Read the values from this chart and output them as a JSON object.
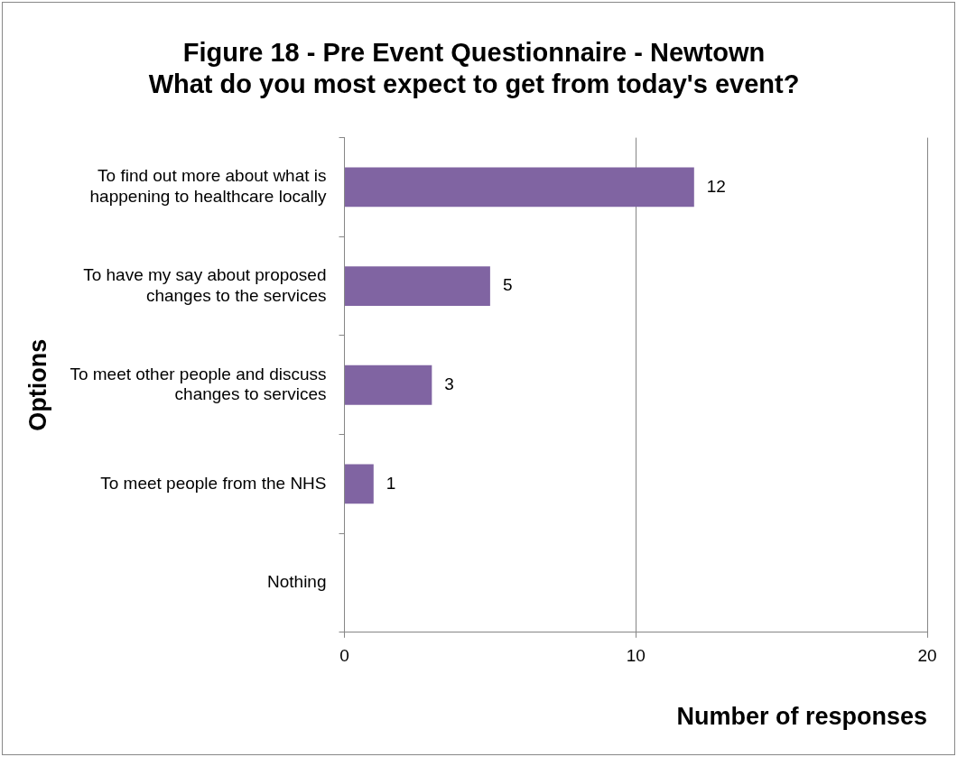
{
  "chart_data": {
    "type": "bar",
    "orientation": "horizontal",
    "title": "Figure 18 - Pre Event Questionnaire - Newtown\nWhat do you most expect to get from today's event?",
    "xlabel": "Number of responses",
    "ylabel": "Options",
    "categories": [
      "To find out more about what is happening to healthcare locally",
      "To have my say about proposed changes to the services",
      "To meet other people and discuss changes to services",
      "To meet people from the NHS",
      "Nothing"
    ],
    "values": [
      12,
      5,
      3,
      1,
      0
    ],
    "value_labels": [
      "12",
      "5",
      "3",
      "1",
      null
    ],
    "color": "#8064a2",
    "xlim": [
      0,
      20
    ],
    "xticks": [
      0,
      10,
      20
    ],
    "grid": "x",
    "legend": false
  }
}
